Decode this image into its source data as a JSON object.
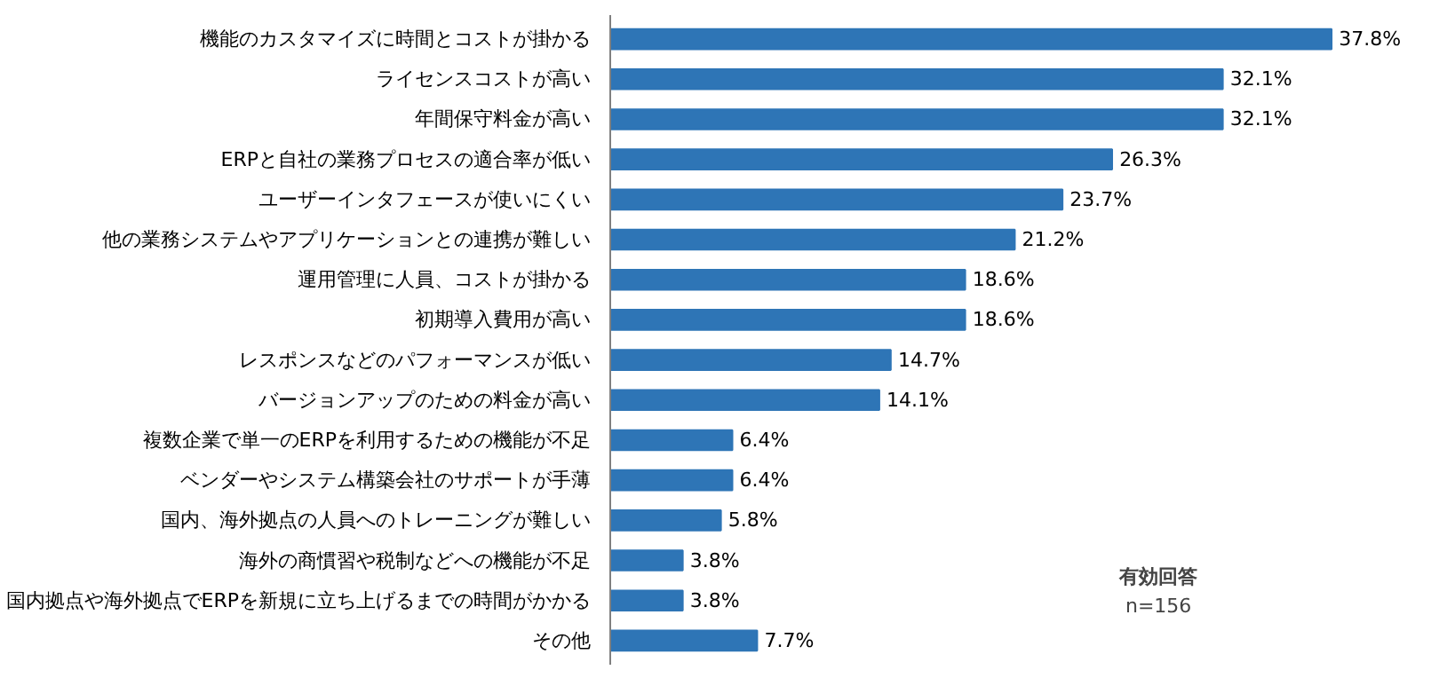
{
  "chart_data": {
    "type": "bar",
    "orientation": "horizontal",
    "categories": [
      "機能のカスタマイズに時間とコストが掛かる",
      "ライセンスコストが高い",
      "年間保守料金が高い",
      "ERPと自社の業務プロセスの適合率が低い",
      "ユーザーインタフェースが使いにくい",
      "他の業務システムやアプリケーションとの連携が難しい",
      "運用管理に人員、コストが掛かる",
      "初期導入費用が高い",
      "レスポンスなどのパフォーマンスが低い",
      "バージョンアップのための料金が高い",
      "複数企業で単一のERPを利用するための機能が不足",
      "ベンダーやシステム構築会社のサポートが手薄",
      "国内、海外拠点の人員へのトレーニングが難しい",
      "海外の商慣習や税制などへの機能が不足",
      "国内拠点や海外拠点でERPを新規に立ち上げるまでの時間がかかる",
      "その他"
    ],
    "values": [
      37.8,
      32.1,
      32.1,
      26.3,
      23.7,
      21.2,
      18.6,
      18.6,
      14.7,
      14.1,
      6.4,
      6.4,
      5.8,
      3.8,
      3.8,
      7.7
    ],
    "value_labels": [
      "37.8%",
      "32.1%",
      "32.1%",
      "26.3%",
      "23.7%",
      "21.2%",
      "18.6%",
      "18.6%",
      "14.7%",
      "14.1%",
      "6.4%",
      "6.4%",
      "5.8%",
      "3.8%",
      "3.8%",
      "7.7%"
    ],
    "color": "#2e75b6",
    "annotations": [
      "有効回答",
      "n=156"
    ],
    "grid": false
  }
}
